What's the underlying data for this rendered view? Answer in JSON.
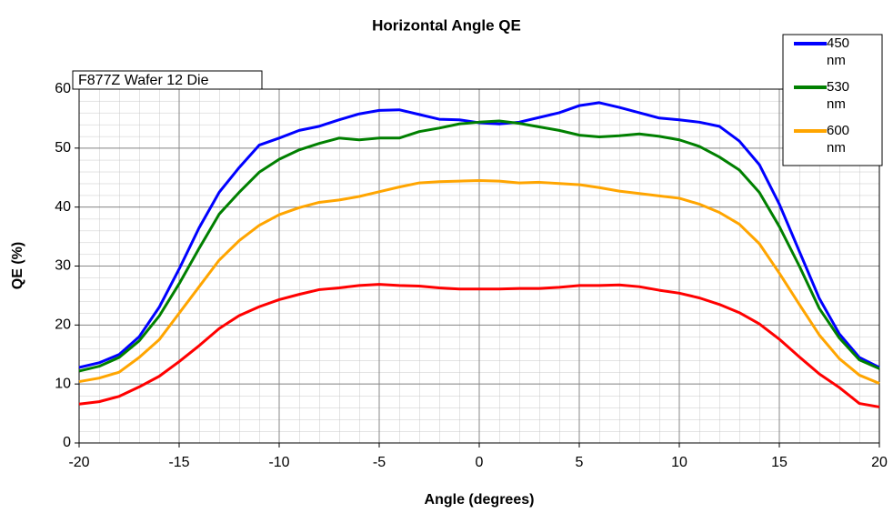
{
  "chart_data": {
    "type": "line",
    "title": "Horizontal Angle QE",
    "annotation": "F877Z Wafer 12 Die",
    "x_label": "Angle (degrees)",
    "y_label": "QE (%)",
    "x": [
      -20,
      -19,
      -18,
      -17,
      -16,
      -15,
      -14,
      -13,
      -12,
      -11,
      -10,
      -9,
      -8,
      -7,
      -6,
      -5,
      -4,
      -3,
      -2,
      -1,
      0,
      1,
      2,
      3,
      4,
      5,
      6,
      7,
      8,
      9,
      10,
      11,
      12,
      13,
      14,
      15,
      16,
      17,
      18,
      19,
      20
    ],
    "series": [
      {
        "name": "450 nm",
        "color": "#0000ff",
        "values": [
          12.8,
          13.6,
          15,
          18,
          23,
          29.5,
          36.5,
          42.5,
          46.7,
          50.5,
          51.7,
          53,
          53.7,
          54.8,
          55.8,
          56.4,
          56.5,
          55.7,
          54.9,
          54.8,
          54.3,
          54.1,
          54.4,
          55.2,
          56,
          57.2,
          57.7,
          56.9,
          56,
          55.1,
          54.8,
          54.4,
          53.7,
          51.2,
          47.2,
          40.5,
          32.5,
          24.5,
          18.5,
          14.5,
          12.8
        ]
      },
      {
        "name": "530 nm",
        "color": "#008000",
        "values": [
          12.2,
          13,
          14.5,
          17.3,
          21.5,
          27,
          33,
          38.8,
          42.5,
          45.9,
          48.1,
          49.7,
          50.8,
          51.7,
          51.4,
          51.7,
          51.7,
          52.8,
          53.4,
          54.1,
          54.4,
          54.6,
          54.2,
          53.6,
          53,
          52.2,
          51.9,
          52.1,
          52.4,
          52,
          51.4,
          50.3,
          48.5,
          46.3,
          42.5,
          36.7,
          30,
          22.8,
          17.8,
          14.1,
          12.6
        ]
      },
      {
        "name": "600 nm",
        "color": "#ffa500",
        "values": [
          10.4,
          11,
          12,
          14.5,
          17.5,
          22,
          26.5,
          31,
          34.3,
          36.9,
          38.7,
          39.9,
          40.8,
          41.2,
          41.8,
          42.6,
          43.4,
          44.1,
          44.3,
          44.4,
          44.5,
          44.4,
          44.1,
          44.2,
          44,
          43.8,
          43.3,
          42.7,
          42.3,
          41.9,
          41.5,
          40.5,
          39.1,
          37.1,
          33.8,
          28.8,
          23.5,
          18.3,
          14.3,
          11.5,
          10.1
        ]
      },
      {
        "color": "#ff0000",
        "values": [
          6.6,
          7,
          7.9,
          9.5,
          11.3,
          13.8,
          16.5,
          19.4,
          21.6,
          23.1,
          24.3,
          25.2,
          26,
          26.3,
          26.7,
          26.9,
          26.7,
          26.6,
          26.3,
          26.1,
          26.1,
          26.1,
          26.2,
          26.2,
          26.4,
          26.7,
          26.7,
          26.8,
          26.5,
          25.9,
          25.4,
          24.6,
          23.5,
          22.1,
          20.2,
          17.6,
          14.6,
          11.7,
          9.4,
          6.7,
          6.1
        ]
      }
    ],
    "xlim": [
      -20,
      20
    ],
    "xticks": [
      -20,
      -15,
      -10,
      -5,
      0,
      5,
      10,
      15,
      20
    ],
    "ylim": [
      0,
      60
    ],
    "yticks": [
      0,
      10,
      20,
      30,
      40,
      50,
      60
    ],
    "grid": true,
    "minor_grid": true,
    "legend": "upper right"
  }
}
